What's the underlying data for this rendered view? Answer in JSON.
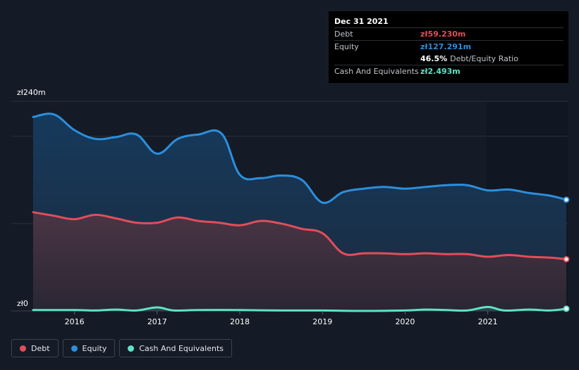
{
  "chart_data": {
    "type": "area",
    "ylabel_top": "zł240m",
    "ylabel_bottom": "zł0",
    "ylim": [
      0,
      240
    ],
    "xlim": [
      2015.5,
      2022.0
    ],
    "x_ticks": [
      {
        "value": 2016,
        "label": "2016"
      },
      {
        "value": 2017,
        "label": "2017"
      },
      {
        "value": 2018,
        "label": "2018"
      },
      {
        "value": 2019,
        "label": "2019"
      },
      {
        "value": 2020,
        "label": "2020"
      },
      {
        "value": 2021,
        "label": "2021"
      }
    ],
    "series": [
      {
        "name": "Equity",
        "color": "#2b8fdd",
        "points": [
          [
            2015.5,
            222
          ],
          [
            2015.75,
            225
          ],
          [
            2016.0,
            207
          ],
          [
            2016.25,
            197
          ],
          [
            2016.5,
            199
          ],
          [
            2016.75,
            202
          ],
          [
            2017.0,
            180
          ],
          [
            2017.25,
            197
          ],
          [
            2017.5,
            202
          ],
          [
            2017.78,
            203
          ],
          [
            2018.0,
            156
          ],
          [
            2018.25,
            152
          ],
          [
            2018.5,
            155
          ],
          [
            2018.75,
            150
          ],
          [
            2019.0,
            124
          ],
          [
            2019.25,
            136
          ],
          [
            2019.5,
            140
          ],
          [
            2019.75,
            142
          ],
          [
            2020.0,
            140
          ],
          [
            2020.25,
            142
          ],
          [
            2020.5,
            144
          ],
          [
            2020.75,
            144
          ],
          [
            2021.0,
            138
          ],
          [
            2021.25,
            139
          ],
          [
            2021.5,
            135
          ],
          [
            2021.75,
            132
          ],
          [
            2021.95,
            127.3
          ]
        ]
      },
      {
        "name": "Debt",
        "color": "#e34d5a",
        "points": [
          [
            2015.5,
            113
          ],
          [
            2015.75,
            109
          ],
          [
            2016.0,
            105
          ],
          [
            2016.25,
            110
          ],
          [
            2016.5,
            106
          ],
          [
            2016.75,
            101
          ],
          [
            2017.0,
            101
          ],
          [
            2017.25,
            107
          ],
          [
            2017.5,
            103
          ],
          [
            2017.75,
            101
          ],
          [
            2018.0,
            98
          ],
          [
            2018.25,
            103
          ],
          [
            2018.5,
            100
          ],
          [
            2018.75,
            94
          ],
          [
            2019.0,
            89
          ],
          [
            2019.25,
            66
          ],
          [
            2019.5,
            66
          ],
          [
            2019.75,
            66
          ],
          [
            2020.0,
            65
          ],
          [
            2020.25,
            66
          ],
          [
            2020.5,
            65
          ],
          [
            2020.75,
            65
          ],
          [
            2021.0,
            62
          ],
          [
            2021.25,
            64
          ],
          [
            2021.5,
            62
          ],
          [
            2021.75,
            61
          ],
          [
            2021.95,
            59.2
          ]
        ]
      },
      {
        "name": "Cash And Equivalents",
        "color": "#5ee3c9",
        "points": [
          [
            2015.5,
            1
          ],
          [
            2016.0,
            1
          ],
          [
            2016.25,
            0.5
          ],
          [
            2016.5,
            1.5
          ],
          [
            2016.75,
            0.5
          ],
          [
            2017.0,
            4
          ],
          [
            2017.2,
            0.5
          ],
          [
            2017.5,
            1
          ],
          [
            2018.0,
            1
          ],
          [
            2018.5,
            0.5
          ],
          [
            2019.0,
            0.5
          ],
          [
            2019.5,
            0
          ],
          [
            2020.0,
            0.5
          ],
          [
            2020.25,
            1.5
          ],
          [
            2020.5,
            1
          ],
          [
            2020.75,
            0.5
          ],
          [
            2021.0,
            4.5
          ],
          [
            2021.2,
            0.5
          ],
          [
            2021.5,
            1.5
          ],
          [
            2021.75,
            0.5
          ],
          [
            2021.95,
            2.5
          ]
        ]
      }
    ]
  },
  "tooltip": {
    "date": "Dec 31 2021",
    "debt_label": "Debt",
    "debt_value": "zł59.230m",
    "equity_label": "Equity",
    "equity_value": "zł127.291m",
    "ratio_value": "46.5%",
    "ratio_label": "Debt/Equity Ratio",
    "cash_label": "Cash And Equivalents",
    "cash_value": "zł2.493m"
  },
  "legend": {
    "debt": "Debt",
    "equity": "Equity",
    "cash": "Cash And Equivalents"
  },
  "colors": {
    "debt": "#e34d5a",
    "equity": "#2b8fdd",
    "cash": "#5ee3c9"
  }
}
